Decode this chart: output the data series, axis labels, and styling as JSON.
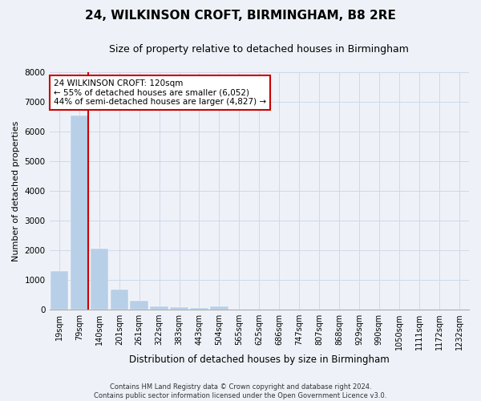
{
  "title_line1": "24, WILKINSON CROFT, BIRMINGHAM, B8 2RE",
  "title_line2": "Size of property relative to detached houses in Birmingham",
  "xlabel": "Distribution of detached houses by size in Birmingham",
  "ylabel": "Number of detached properties",
  "categories": [
    "19sqm",
    "79sqm",
    "140sqm",
    "201sqm",
    "261sqm",
    "322sqm",
    "383sqm",
    "443sqm",
    "504sqm",
    "565sqm",
    "625sqm",
    "686sqm",
    "747sqm",
    "807sqm",
    "868sqm",
    "929sqm",
    "990sqm",
    "1050sqm",
    "1111sqm",
    "1172sqm",
    "1232sqm"
  ],
  "values": [
    1300,
    6550,
    2060,
    680,
    290,
    110,
    70,
    55,
    110,
    0,
    0,
    0,
    0,
    0,
    0,
    0,
    0,
    0,
    0,
    0,
    0
  ],
  "bar_color": "#b8cfe8",
  "bar_edge_color": "#b8cfe8",
  "grid_color": "#d0d8e8",
  "background_color": "#eef2f8",
  "property_line_color": "#cc0000",
  "annotation_text": "24 WILKINSON CROFT: 120sqm\n← 55% of detached houses are smaller (6,052)\n44% of semi-detached houses are larger (4,827) →",
  "annotation_box_color": "white",
  "annotation_box_edge": "#cc0000",
  "ylim": [
    0,
    8000
  ],
  "yticks": [
    0,
    1000,
    2000,
    3000,
    4000,
    5000,
    6000,
    7000,
    8000
  ],
  "footnote": "Contains HM Land Registry data © Crown copyright and database right 2024.\nContains public sector information licensed under the Open Government Licence v3.0.",
  "title_fontsize": 11,
  "subtitle_fontsize": 9,
  "tick_fontsize": 7,
  "ylabel_fontsize": 8,
  "xlabel_fontsize": 8.5,
  "annotation_fontsize": 7.5,
  "footnote_fontsize": 6
}
